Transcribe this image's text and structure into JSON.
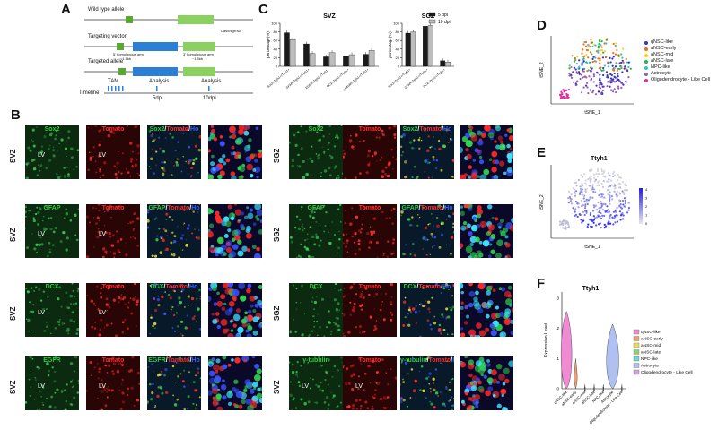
{
  "panels": {
    "A": "A",
    "B": "B",
    "C": "C",
    "D": "D",
    "E": "E",
    "F": "F"
  },
  "panelA": {
    "wildtype": "Wild type allele",
    "targeting": "Targeting vector",
    "targeted": "Targeted allele",
    "timeline_label": "Timeline",
    "tam": "TAM",
    "analysis": "Analysis",
    "d5": "5dpi",
    "d10": "10dpi",
    "hom_left": "5' homologous arm",
    "hom_right": "3' homologous arm",
    "kb_left": "~1.5kb",
    "kb_right": "~1.5kb",
    "cas": "Cas9/sgRNA"
  },
  "panelC": {
    "legend": [
      {
        "label": "5 dpi",
        "color": "#1a1a1a"
      },
      {
        "label": "10 dpi",
        "color": "#bdbdbd"
      }
    ],
    "ylabel": "percentage(%)",
    "svz": {
      "title": "SVZ",
      "categories": [
        "Sox2+Ttyh1+/Ttyh1+",
        "GFAP+Ttyh1+/Ttyh1+",
        "EGFR+Ttyh1+/Ttyh1+",
        "DCX+Ttyh1+/Ttyh1+",
        "γ-tubulin+Ttyh1+/Ttyh1+"
      ],
      "series": [
        {
          "name": "5 dpi",
          "values": [
            78,
            52,
            22,
            23,
            28
          ]
        },
        {
          "name": "10 dpi",
          "values": [
            62,
            30,
            32,
            27,
            37
          ]
        }
      ],
      "yticks": [
        "0",
        "20",
        "40",
        "60",
        "80",
        "100"
      ],
      "ylim": [
        0,
        100
      ]
    },
    "sgz": {
      "title": "SGZ",
      "categories": [
        "Sox2+Ttyh1+/Ttyh1+",
        "GFAP+Ttyh1+/Ttyh1+",
        "DCX+Ttyh1+/Ttyh1+"
      ],
      "series": [
        {
          "name": "5 dpi",
          "values": [
            77,
            93,
            13
          ]
        },
        {
          "name": "10 dpi",
          "values": [
            80,
            95,
            10
          ]
        }
      ],
      "yticks": [
        "0",
        "20",
        "40",
        "60",
        "80",
        "100"
      ],
      "ylim": [
        0,
        100
      ]
    }
  },
  "panelB": {
    "rows": [
      {
        "region": "SVZ",
        "marker": "Sox2"
      },
      {
        "region": "SVZ",
        "marker": "GFAP"
      },
      {
        "region": "SVZ",
        "marker": "DCX"
      },
      {
        "region": "SVZ",
        "marker": "EGFR"
      }
    ],
    "rows_right": [
      {
        "region": "SGZ",
        "marker": "Sox2"
      },
      {
        "region": "SGZ",
        "marker": "GFAP"
      },
      {
        "region": "SGZ",
        "marker": "DCX"
      },
      {
        "region": "SVZ",
        "marker": "γ-tubulin"
      }
    ],
    "tomato": "Tomato",
    "merge_sep": "/",
    "ho": "Ho",
    "lv": "LV"
  },
  "panelD": {
    "xlabel": "tSNE_1",
    "ylabel": "tSNE_2",
    "legend": [
      {
        "label": "qNSC-like",
        "color": "#3333cc"
      },
      {
        "label": "aNSC-early",
        "color": "#ff6a00"
      },
      {
        "label": "aNSC-mid",
        "color": "#ffd21a"
      },
      {
        "label": "aNSC-late",
        "color": "#2ab24a"
      },
      {
        "label": "NPC-like",
        "color": "#30c0e0"
      },
      {
        "label": "Astrocyte",
        "color": "#9b59b6"
      },
      {
        "label": "Oligodendrocyte - Like Cell",
        "color": "#e02d9e"
      }
    ]
  },
  "panelE": {
    "title": "Ttyh1",
    "xlabel": "tSNE_1",
    "ylabel": "tSNE_2",
    "scale": [
      "4",
      "3",
      "2",
      "1",
      "0"
    ]
  },
  "panelF": {
    "title": "Ttyh1",
    "ylabel": "Expression Level",
    "yticks": [
      "0",
      "1",
      "2",
      "3"
    ],
    "categories": [
      "qNSC-like",
      "aNSC-early",
      "aNSC-mid",
      "aNSC-late",
      "NPC-like",
      "Astrocyte",
      "Oligodendrocyte - Like Cell"
    ],
    "legend": [
      {
        "label": "qNSC-like",
        "color": "#f08ad2"
      },
      {
        "label": "aNSC-early",
        "color": "#f0a070"
      },
      {
        "label": "aNSC-mid",
        "color": "#e8dc60"
      },
      {
        "label": "aNSC-late",
        "color": "#90d070"
      },
      {
        "label": "NPC-like",
        "color": "#70d8c8"
      },
      {
        "label": "Astrocyte",
        "color": "#b0c0f0"
      },
      {
        "label": "Oligodendrocyte - Like Cell",
        "color": "#d0a0e0"
      }
    ]
  }
}
